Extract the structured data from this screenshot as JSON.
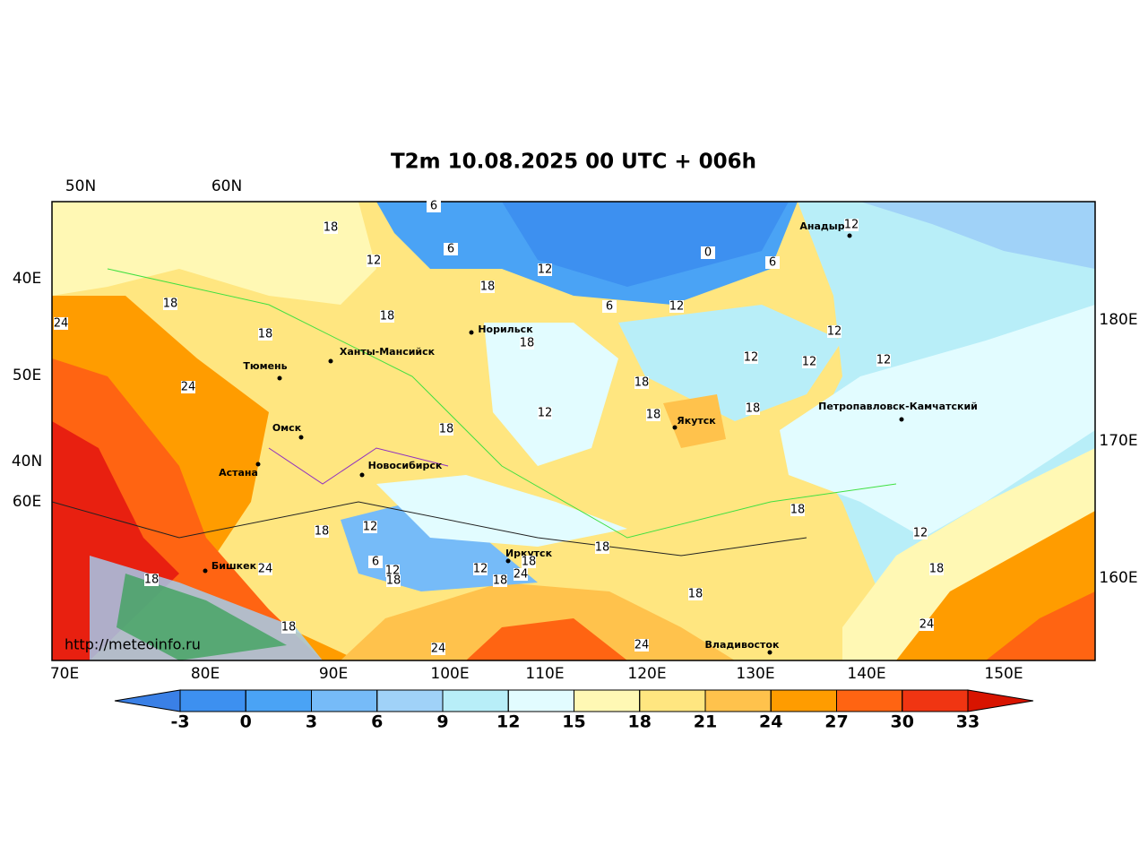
{
  "title": "T2m 10.08.2025 00 UTC + 006h",
  "attribution": "http://meteoinfo.ru",
  "top_labels": [
    "50N",
    "60N"
  ],
  "left_labels": [
    "40E",
    "50E",
    "40N",
    "60E"
  ],
  "right_labels": [
    "180E",
    "170E",
    "160E"
  ],
  "bottom_labels": [
    "70E",
    "80E",
    "90E",
    "100E",
    "110E",
    "120E",
    "130E",
    "140E",
    "150E"
  ],
  "cities": [
    "Анадырь",
    "Норильск",
    "Ханты-Мансийск",
    "Тюмень",
    "Омск",
    "Астана",
    "Новосибирск",
    "Якутск",
    "Петропавловск-Камчатский",
    "Иркутск",
    "Бишкек",
    "Владивосток"
  ],
  "contour_labels": [
    18,
    6,
    6,
    12,
    12,
    18,
    0,
    6,
    12,
    6,
    12,
    18,
    18,
    24,
    18,
    18,
    12,
    12,
    12,
    12,
    18,
    24,
    12,
    18,
    18,
    18,
    18,
    12,
    18,
    12,
    18,
    6,
    12,
    12,
    24,
    18,
    18,
    18,
    24,
    18,
    18,
    18,
    18,
    24,
    24,
    24
  ],
  "colorbar": {
    "ticks": [
      -3,
      0,
      3,
      6,
      9,
      12,
      15,
      18,
      21,
      24,
      27,
      30,
      33
    ],
    "colors": [
      "#3a80e6",
      "#3d90f0",
      "#4aa3f5",
      "#76bbf8",
      "#a0d2f8",
      "#b8eef8",
      "#e2fcff",
      "#fff8b4",
      "#ffe680",
      "#ffc24c",
      "#ff9c00",
      "#ff6412",
      "#f03512",
      "#d81400"
    ]
  }
}
